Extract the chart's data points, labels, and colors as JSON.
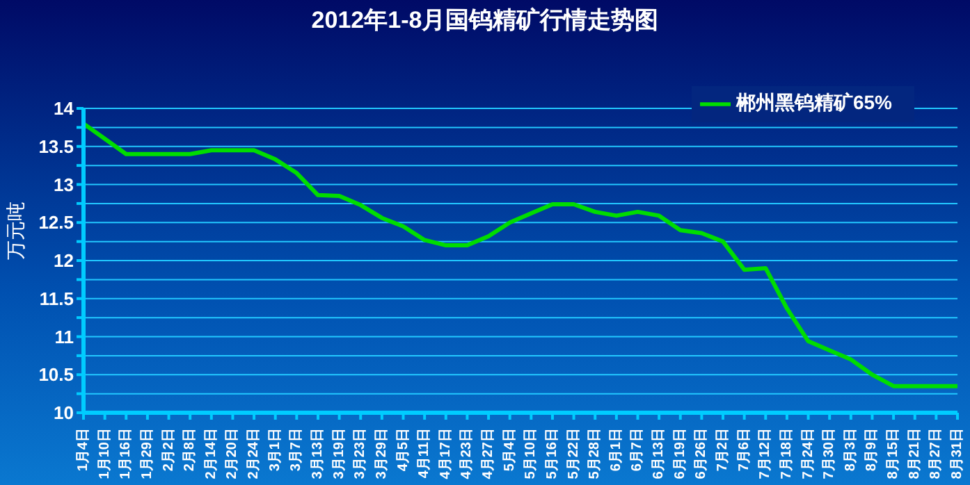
{
  "chart_data": {
    "type": "line",
    "title": "2012年1-8月国钨精矿行情走势图",
    "ylabel": "万元吨",
    "categories": [
      "1月4日",
      "1月10日",
      "1月16日",
      "1月29日",
      "2月2日",
      "2月8日",
      "2月14日",
      "2月20日",
      "2月24日",
      "3月1日",
      "3月7日",
      "3月13日",
      "3月19日",
      "3月23日",
      "3月29日",
      "4月5日",
      "4月11日",
      "4月17日",
      "4月23日",
      "4月27日",
      "5月4日",
      "5月10日",
      "5月16日",
      "5月22日",
      "5月28日",
      "6月1日",
      "6月7日",
      "6月13日",
      "6月19日",
      "6月26日",
      "7月2日",
      "7月6日",
      "7月12日",
      "7月18日",
      "7月24日",
      "7月30日",
      "8月3日",
      "8月9日",
      "8月15日",
      "8月21日",
      "8月27日",
      "8月31日"
    ],
    "series": [
      {
        "name": "郴州黑钨精矿65%",
        "color": "#00dd00",
        "values": [
          13.8,
          13.6,
          13.4,
          13.4,
          13.4,
          13.4,
          13.45,
          13.45,
          13.45,
          13.33,
          13.15,
          12.86,
          12.85,
          12.73,
          12.56,
          12.45,
          12.27,
          12.2,
          12.2,
          12.32,
          12.5,
          12.62,
          12.74,
          12.74,
          12.64,
          12.59,
          12.64,
          12.59,
          12.4,
          12.36,
          12.25,
          11.88,
          11.9,
          11.37,
          10.94,
          10.82,
          10.7,
          10.5,
          10.35,
          10.35,
          10.35,
          10.35
        ]
      }
    ],
    "ylim": [
      10,
      14
    ],
    "yticks": [
      10,
      {
        "value": 10.25,
        "label": null
      },
      10.5,
      {
        "value": 10.75,
        "label": null
      },
      11,
      {
        "value": 11.25,
        "label": null
      },
      11.5,
      {
        "value": 11.75,
        "label": null
      },
      12,
      {
        "value": 12.25,
        "label": null
      },
      12.5,
      {
        "value": 12.75,
        "label": null
      },
      13,
      {
        "value": 13.25,
        "label": null
      },
      13.5,
      {
        "value": 13.75,
        "label": null
      },
      14
    ],
    "grid": "y",
    "legend": "top right",
    "marker": "none",
    "line_style": "solid"
  }
}
